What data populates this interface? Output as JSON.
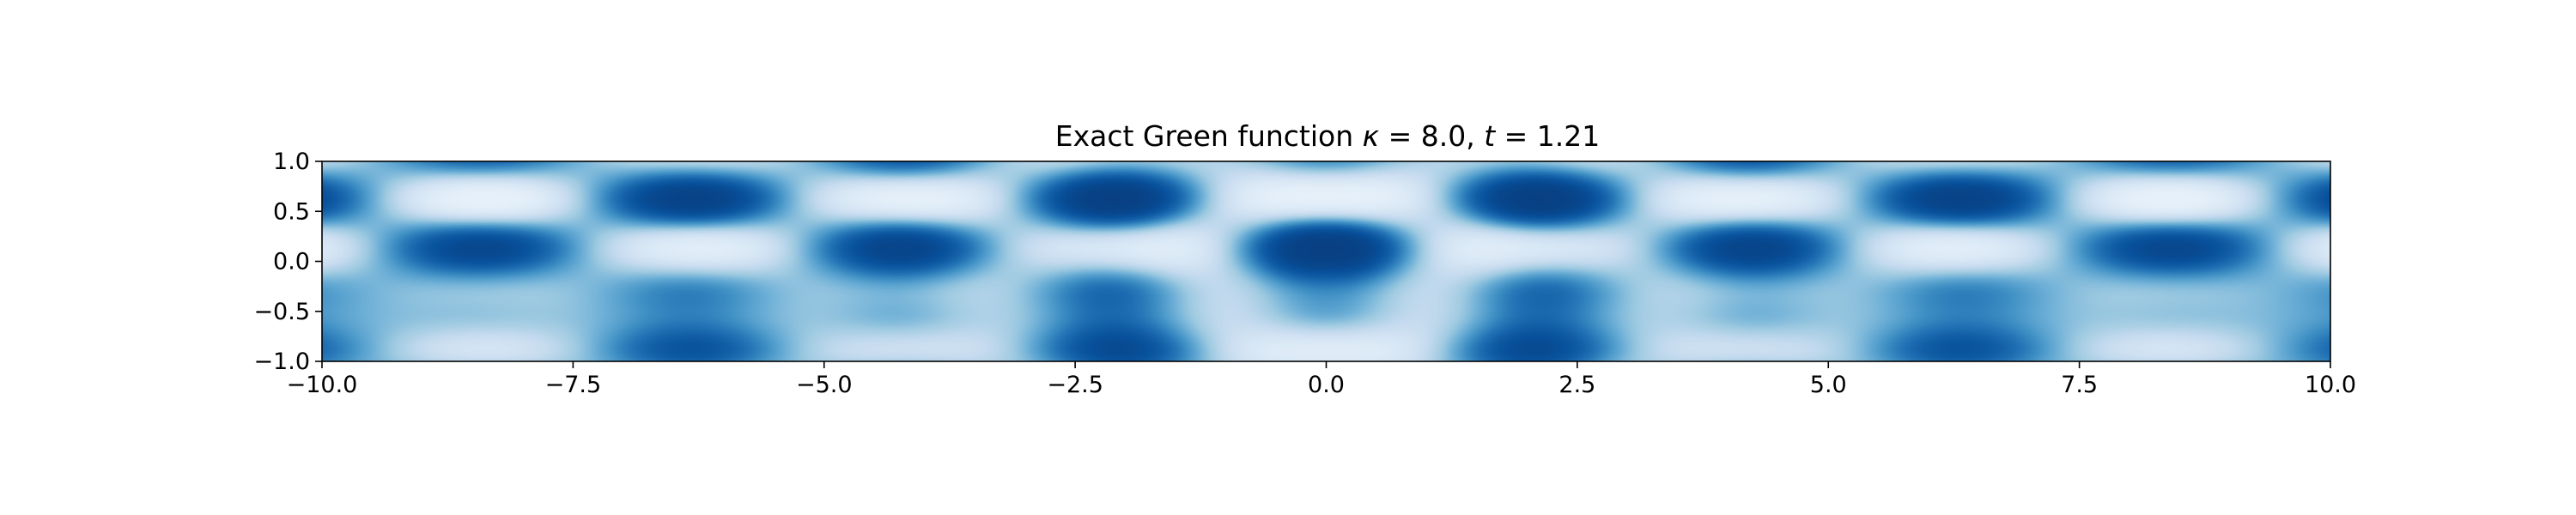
{
  "chart_data": {
    "type": "heatmap",
    "title": "Exact Green function κ = 8.0, t = 1.21",
    "title_parts": {
      "lead": "Exact Green function ",
      "kappa_symbol": "κ",
      "kappa_value": " = 8.0, ",
      "t_symbol": "t",
      "t_value": " = 1.21"
    },
    "kappa": 8.0,
    "t": 1.21,
    "xlabel": "",
    "ylabel": "",
    "xlim": [
      -10.0,
      10.0
    ],
    "ylim": [
      -1.0,
      1.0
    ],
    "x_ticks": [
      -10.0,
      -7.5,
      -5.0,
      -2.5,
      0.0,
      2.5,
      5.0,
      7.5,
      10.0
    ],
    "x_tick_labels": [
      "−10.0",
      "−7.5",
      "−5.0",
      "−2.5",
      "0.0",
      "2.5",
      "5.0",
      "7.5",
      "10.0"
    ],
    "y_ticks": [
      1.0,
      0.5,
      0.0,
      -0.5,
      -1.0
    ],
    "y_tick_labels": [
      "1.0",
      "0.5",
      "0.0",
      "−0.5",
      "−1.0"
    ],
    "colormap": "Blues",
    "colormap_low": "#f7fbff",
    "colormap_high": "#08306b",
    "grid": false,
    "legend": "none"
  }
}
